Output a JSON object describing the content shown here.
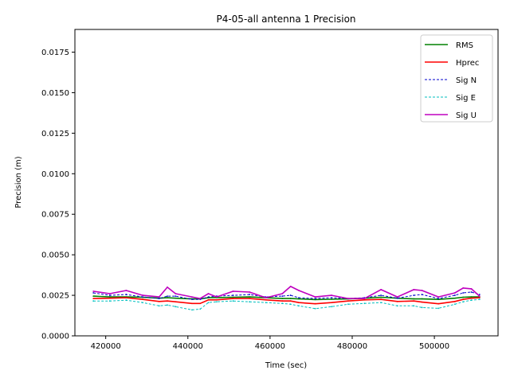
{
  "chart_data": {
    "type": "line",
    "title": "P4-05-all antenna 1 Precision",
    "xlabel": "Time (sec)",
    "ylabel": "Precision (m)",
    "xlim": [
      412500,
      515500
    ],
    "ylim": [
      0.0,
      0.0189
    ],
    "xticks": [
      420000,
      440000,
      460000,
      480000,
      500000
    ],
    "xtick_labels": [
      "420000",
      "440000",
      "460000",
      "480000",
      "500000"
    ],
    "yticks": [
      0.0,
      0.0025,
      0.005,
      0.0075,
      0.01,
      0.0125,
      0.015,
      0.0175
    ],
    "ytick_labels": [
      "0.0000",
      "0.0025",
      "0.0050",
      "0.0075",
      "0.0100",
      "0.0125",
      "0.0150",
      "0.0175"
    ],
    "grid": false,
    "legend_position": "top-right",
    "x": [
      417000,
      421000,
      425000,
      429000,
      433000,
      435000,
      437000,
      441000,
      443000,
      445000,
      447000,
      451000,
      455000,
      459000,
      463000,
      465000,
      467000,
      471000,
      475000,
      479000,
      483000,
      487000,
      491000,
      495000,
      497000,
      501000,
      505000,
      507000,
      509000,
      511000
    ],
    "series": [
      {
        "name": "RMS",
        "color": "#008000",
        "style": "solid",
        "values": [
          0.00245,
          0.0024,
          0.0024,
          0.00238,
          0.00232,
          0.00235,
          0.00232,
          0.00228,
          0.00228,
          0.00235,
          0.00236,
          0.00238,
          0.0024,
          0.00235,
          0.0023,
          0.0023,
          0.00228,
          0.00224,
          0.00226,
          0.00228,
          0.00232,
          0.00238,
          0.00232,
          0.00228,
          0.00228,
          0.00225,
          0.00232,
          0.00238,
          0.0024,
          0.0024
        ]
      },
      {
        "name": "Hprec",
        "color": "#ff0000",
        "style": "solid",
        "values": [
          0.0023,
          0.00232,
          0.00235,
          0.00225,
          0.00212,
          0.00215,
          0.0021,
          0.002,
          0.002,
          0.00222,
          0.00222,
          0.0023,
          0.0023,
          0.00222,
          0.00215,
          0.00215,
          0.00205,
          0.00198,
          0.00205,
          0.00215,
          0.00222,
          0.00225,
          0.00212,
          0.00215,
          0.00208,
          0.00198,
          0.00212,
          0.00225,
          0.00232,
          0.00235
        ]
      },
      {
        "name": "Sig N",
        "color": "#0000cc",
        "style": "dashed",
        "values": [
          0.00265,
          0.0025,
          0.00255,
          0.0024,
          0.0023,
          0.00245,
          0.00245,
          0.00225,
          0.00225,
          0.0024,
          0.00245,
          0.0025,
          0.00255,
          0.0024,
          0.00245,
          0.0025,
          0.00235,
          0.0023,
          0.00235,
          0.0023,
          0.00235,
          0.0025,
          0.00232,
          0.0025,
          0.00255,
          0.0023,
          0.0025,
          0.00265,
          0.0027,
          0.00255
        ]
      },
      {
        "name": "Sig E",
        "color": "#00bfbf",
        "style": "dashed",
        "values": [
          0.00215,
          0.00215,
          0.0022,
          0.00205,
          0.00185,
          0.0019,
          0.0018,
          0.0016,
          0.00165,
          0.00205,
          0.0021,
          0.00215,
          0.0021,
          0.00205,
          0.002,
          0.00195,
          0.00185,
          0.00168,
          0.0018,
          0.00195,
          0.002,
          0.00205,
          0.00185,
          0.00185,
          0.00175,
          0.0017,
          0.00195,
          0.0021,
          0.0022,
          0.00225
        ]
      },
      {
        "name": "Sig U",
        "color": "#bf00bf",
        "style": "solid",
        "values": [
          0.00275,
          0.0026,
          0.0028,
          0.0025,
          0.0024,
          0.003,
          0.0026,
          0.0024,
          0.0023,
          0.0026,
          0.0024,
          0.00275,
          0.0027,
          0.00235,
          0.0026,
          0.00305,
          0.0028,
          0.0024,
          0.0025,
          0.0023,
          0.0023,
          0.00285,
          0.0024,
          0.00285,
          0.0028,
          0.0024,
          0.00265,
          0.00295,
          0.0029,
          0.00245
        ]
      }
    ]
  }
}
